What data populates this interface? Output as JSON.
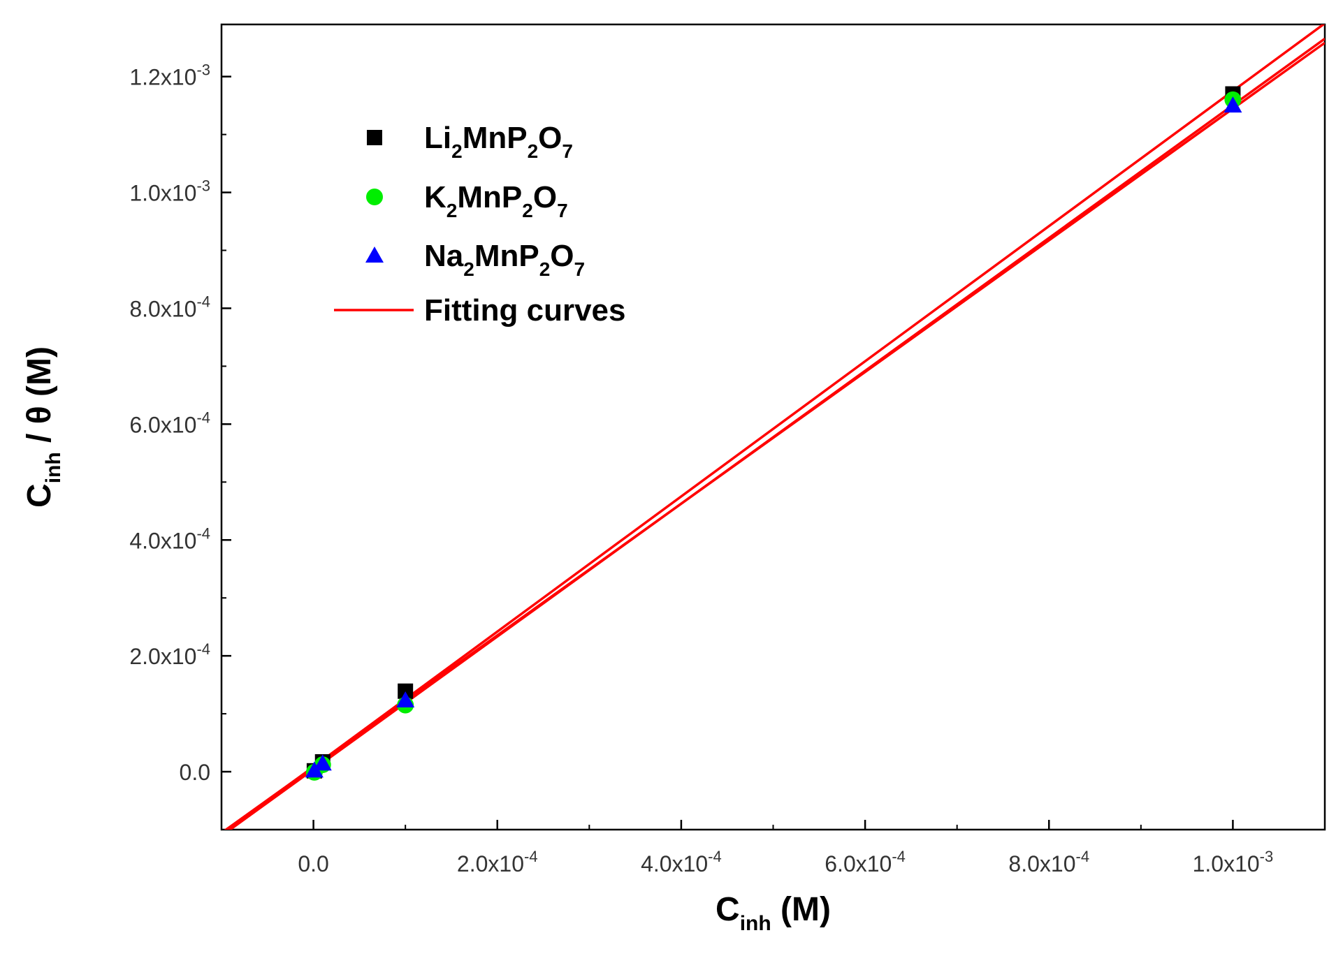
{
  "chart_data": {
    "type": "scatter",
    "title": "",
    "xlabel": {
      "main": "C",
      "sub": "inh",
      "suffix": " (M)"
    },
    "ylabel": {
      "main": "C",
      "sub": "inh",
      "suffix": " / θ (M)"
    },
    "xlim": [
      -0.0001,
      0.0011
    ],
    "ylim": [
      -0.0001,
      0.00129
    ],
    "x_ticks": [
      {
        "value": 0,
        "mantissa": "0.0",
        "exp": ""
      },
      {
        "value": 0.0002,
        "mantissa": "2.0x10",
        "exp": "-4"
      },
      {
        "value": 0.0004,
        "mantissa": "4.0x10",
        "exp": "-4"
      },
      {
        "value": 0.0006,
        "mantissa": "6.0x10",
        "exp": "-4"
      },
      {
        "value": 0.0008,
        "mantissa": "8.0x10",
        "exp": "-4"
      },
      {
        "value": 0.001,
        "mantissa": "1.0x10",
        "exp": "-3"
      }
    ],
    "y_ticks": [
      {
        "value": 0,
        "mantissa": "0.0",
        "exp": ""
      },
      {
        "value": 0.0002,
        "mantissa": "2.0x10",
        "exp": "-4"
      },
      {
        "value": 0.0004,
        "mantissa": "4.0x10",
        "exp": "-4"
      },
      {
        "value": 0.0006,
        "mantissa": "6.0x10",
        "exp": "-4"
      },
      {
        "value": 0.0008,
        "mantissa": "8.0x10",
        "exp": "-4"
      },
      {
        "value": 0.001,
        "mantissa": "1.0x10",
        "exp": "-3"
      },
      {
        "value": 0.0012,
        "mantissa": "1.2x10",
        "exp": "-3"
      }
    ],
    "series": [
      {
        "name": "Li2MnP2O7",
        "label_parts": [
          [
            "Li",
            ""
          ],
          [
            "2",
            "sub"
          ],
          [
            "MnP",
            ""
          ],
          [
            "2",
            "sub"
          ],
          [
            "O",
            ""
          ],
          [
            "7",
            "sub"
          ]
        ],
        "marker": "square",
        "color": "#000000",
        "x": [
          1e-06,
          1e-05,
          0.0001,
          0.001
        ],
        "y": [
          1.5e-06,
          1.7e-05,
          0.000139,
          0.00117
        ]
      },
      {
        "name": "K2MnP2O7",
        "label_parts": [
          [
            "K",
            ""
          ],
          [
            "2",
            "sub"
          ],
          [
            "MnP",
            ""
          ],
          [
            "2",
            "sub"
          ],
          [
            "O",
            ""
          ],
          [
            "7",
            "sub"
          ]
        ],
        "marker": "circle",
        "color": "#00ee00",
        "x": [
          1e-06,
          1e-05,
          0.0001,
          0.001
        ],
        "y": [
          -1e-06,
          1.2e-05,
          0.000115,
          0.00116
        ]
      },
      {
        "name": "Na2MnP2O7",
        "label_parts": [
          [
            "Na",
            ""
          ],
          [
            "2",
            "sub"
          ],
          [
            "MnP",
            ""
          ],
          [
            "2",
            "sub"
          ],
          [
            "O",
            ""
          ],
          [
            "7",
            "sub"
          ]
        ],
        "marker": "triangle",
        "color": "#0000ff",
        "x": [
          1e-06,
          1e-05,
          0.0001,
          0.001
        ],
        "y": [
          2e-06,
          1.4e-05,
          0.000123,
          0.00115
        ]
      }
    ],
    "fits": [
      {
        "name": "Fitting curves",
        "slope": 1.1667,
        "intercept": 8.5e-06,
        "color": "#ff0000"
      },
      {
        "name": "Fitting curves",
        "slope": 1.1467,
        "intercept": 4e-06,
        "color": "#ff0000"
      },
      {
        "name": "Fitting curves",
        "slope": 1.1367,
        "intercept": 8e-06,
        "color": "#ff0000"
      }
    ],
    "legend": {
      "position": "top-left",
      "fit_label": "Fitting curves"
    },
    "grid": false
  }
}
